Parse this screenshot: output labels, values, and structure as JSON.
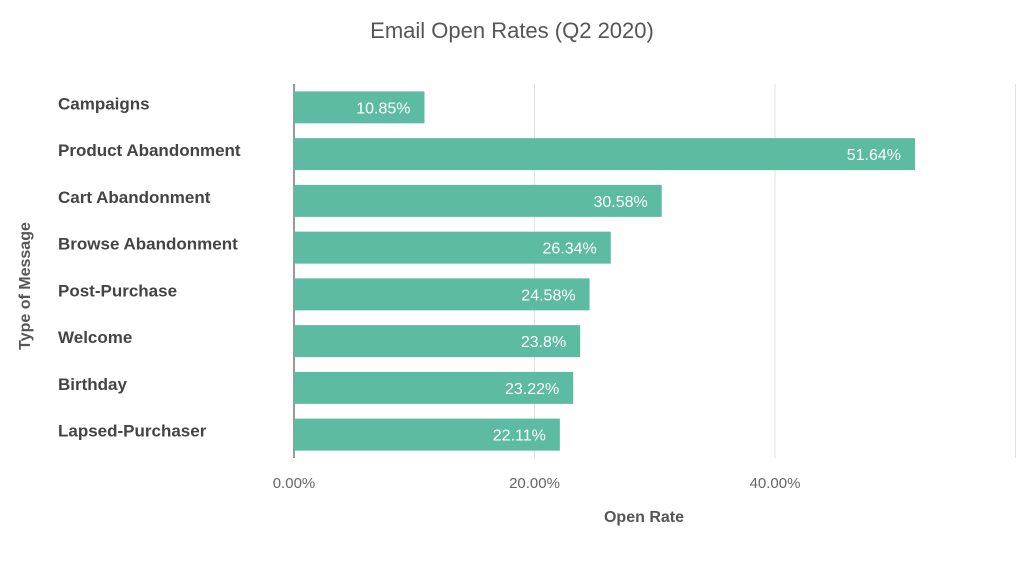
{
  "chart_data": {
    "type": "bar",
    "orientation": "horizontal",
    "title": "Email Open Rates (Q2 2020)",
    "xlabel": "Open Rate",
    "ylabel": "Type of Message",
    "categories": [
      "Campaigns",
      "Product Abandonment",
      "Cart Abandonment",
      "Browse Abandonment",
      "Post-Purchase",
      "Welcome",
      "Birthday",
      "Lapsed-Purchaser"
    ],
    "values": [
      10.85,
      51.64,
      30.58,
      26.34,
      24.58,
      23.8,
      23.22,
      22.11
    ],
    "value_labels": [
      "10.85%",
      "51.64%",
      "30.58%",
      "26.34%",
      "24.58%",
      "23.8%",
      "23.22%",
      "22.11%"
    ],
    "xlim": [
      0,
      60
    ],
    "xticks": [
      0,
      20,
      40
    ],
    "xtick_labels": [
      "0.00%",
      "20.00%",
      "40.00%"
    ],
    "grid": true,
    "colors": {
      "bar": "#5dbba2",
      "grid": "#e3e3e3",
      "axis_text": "#666666",
      "category_text": "#444444",
      "title": "#555555"
    }
  }
}
